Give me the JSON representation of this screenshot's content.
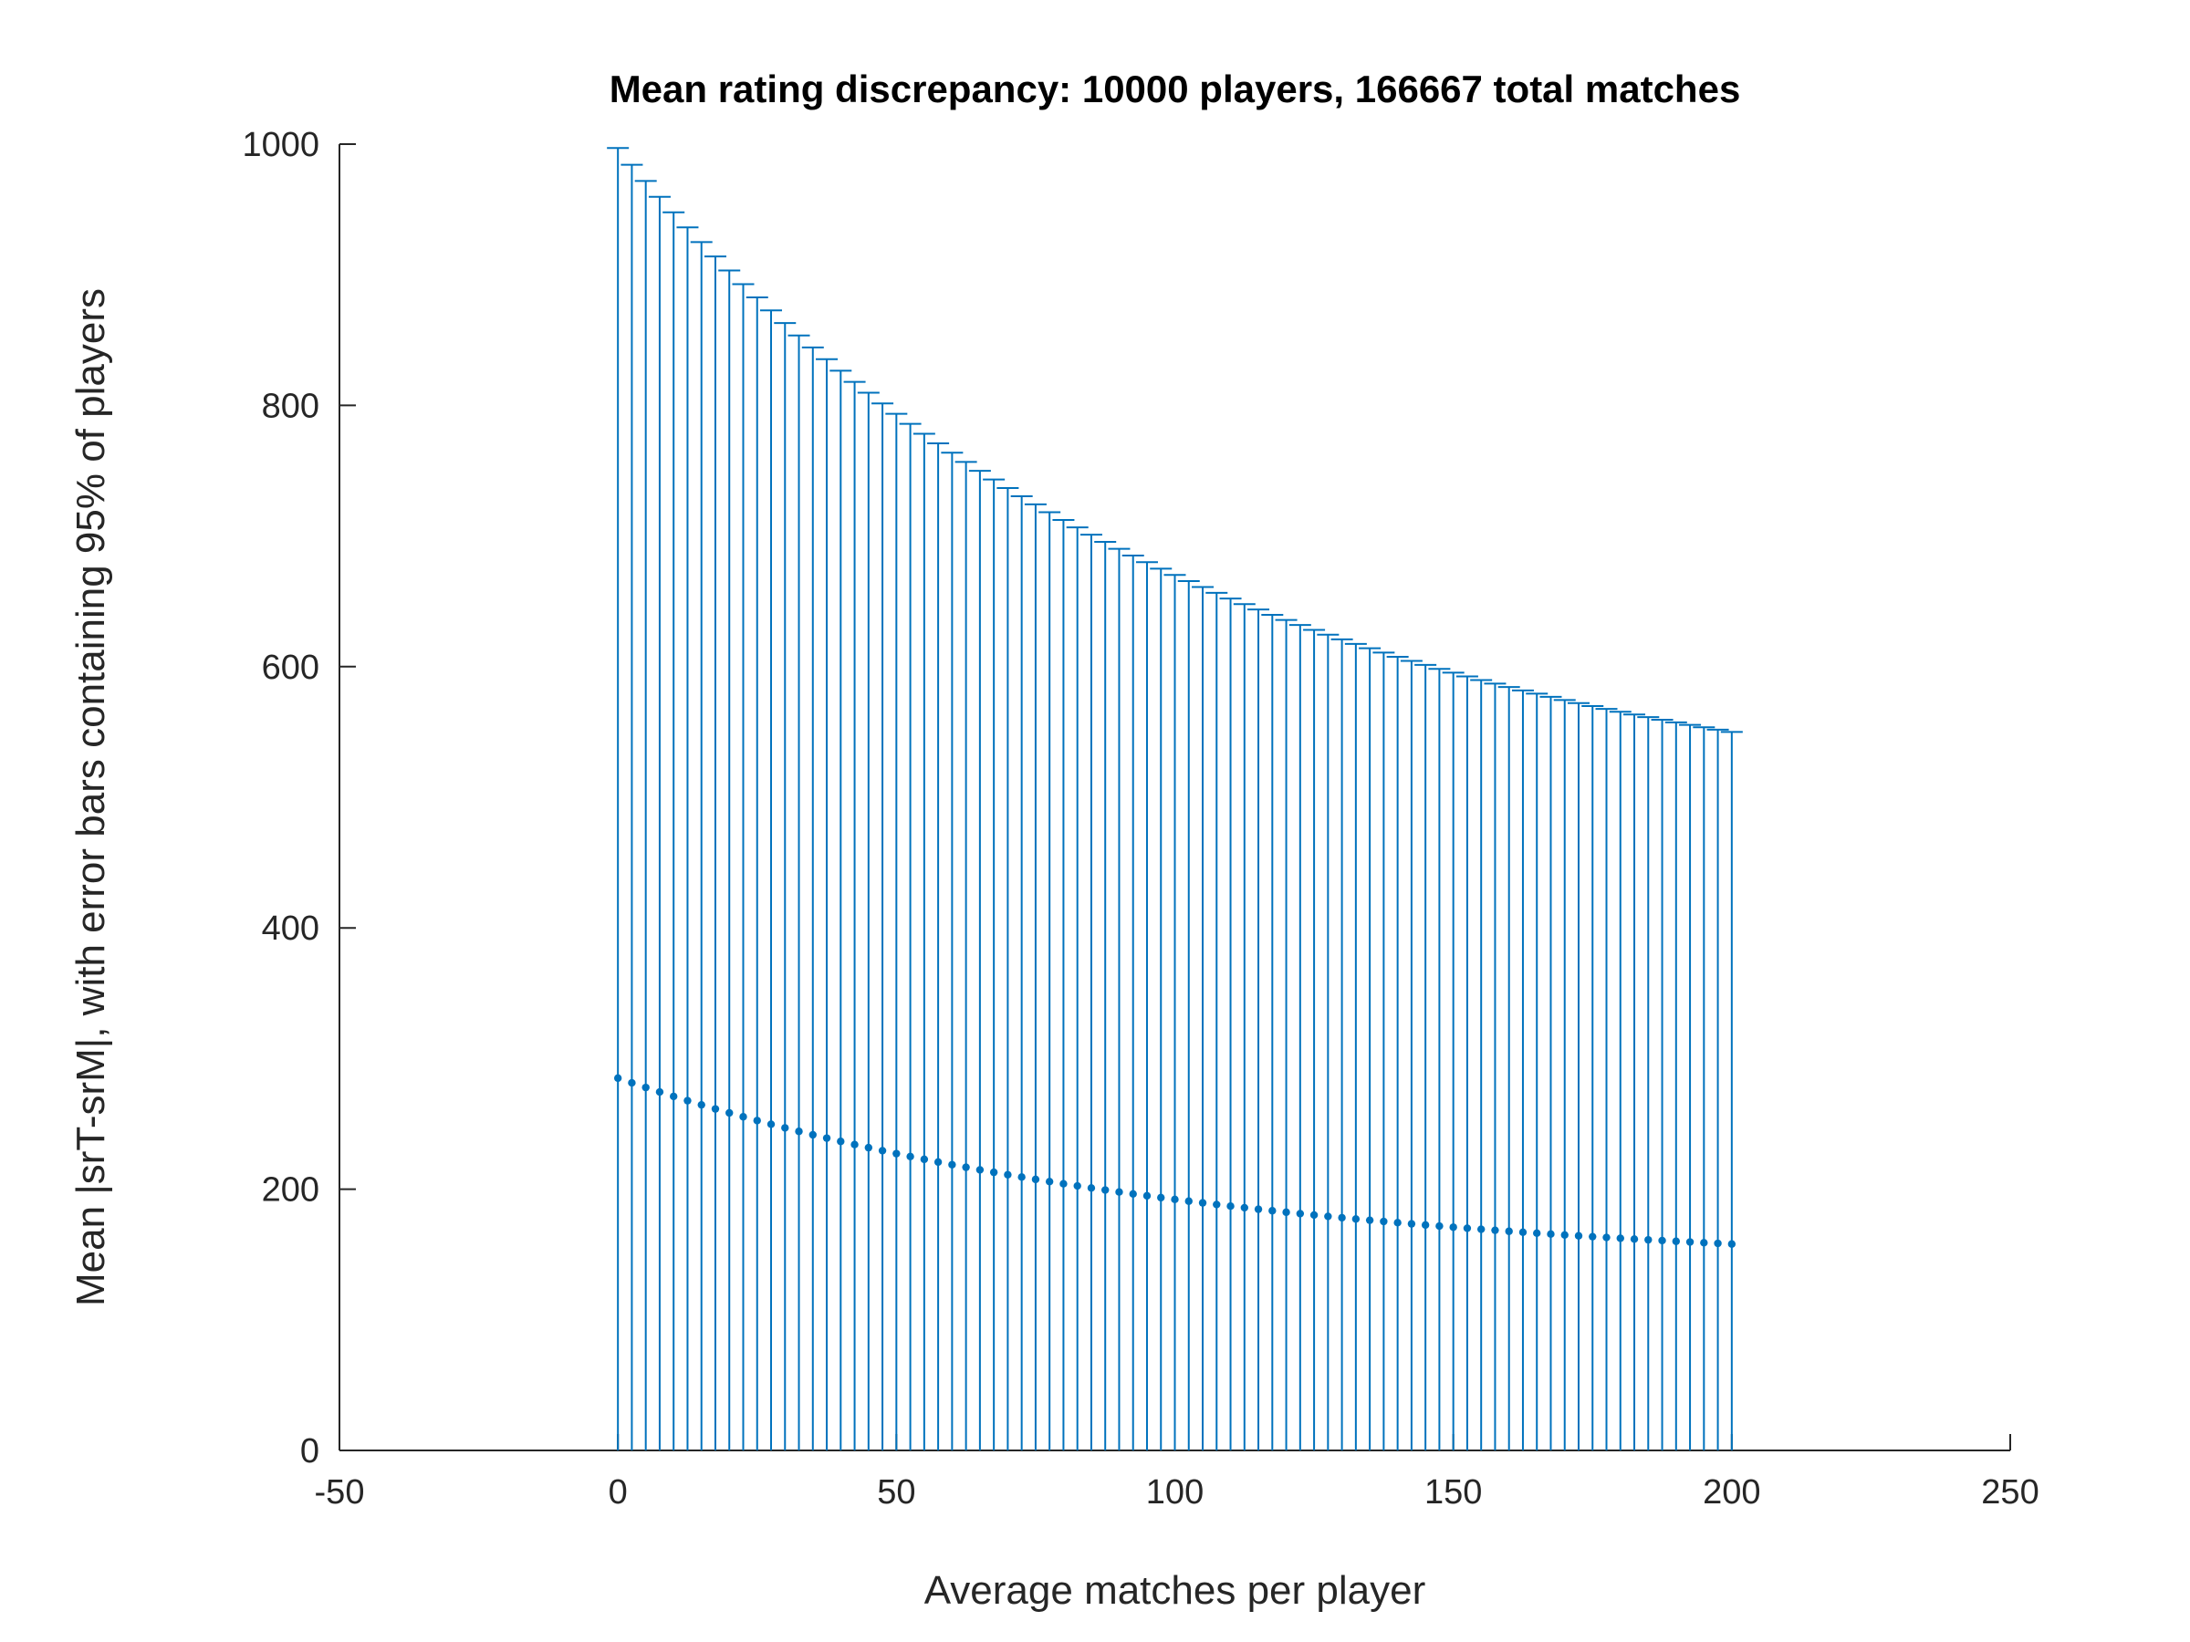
{
  "chart_data": {
    "type": "scatter",
    "title": "Mean rating discrepancy: 10000 players, 166667 total matches",
    "xlabel": "Average matches per player",
    "ylabel": "Mean |srT-srM|, with error bars containing 95% of players",
    "xlim": [
      -50,
      250
    ],
    "ylim": [
      0,
      1000
    ],
    "x_ticks": [
      -50,
      0,
      50,
      100,
      150,
      200,
      250
    ],
    "y_ticks": [
      0,
      200,
      400,
      600,
      800,
      1000
    ],
    "x_tick_labels": [
      "-50",
      "0",
      "50",
      "100",
      "150",
      "200",
      "250"
    ],
    "y_tick_labels": [
      "0",
      "200",
      "400",
      "600",
      "800",
      "1000"
    ],
    "grid": false,
    "legend": "none",
    "series_color": "#0072BD",
    "axis_color": "#262626",
    "series": {
      "x_start": 0,
      "x_step": 2.5,
      "count": 81,
      "mean_start": 285,
      "mean_end": 158,
      "upper_start": 997,
      "upper_end": 550,
      "lower": 0,
      "curve_shape": 0.4
    }
  }
}
